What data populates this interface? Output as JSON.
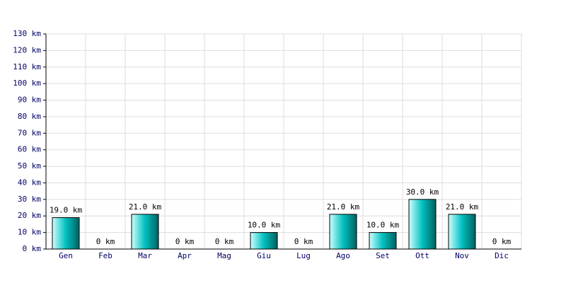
{
  "chart_data": {
    "type": "bar",
    "categories": [
      "Gen",
      "Feb",
      "Mar",
      "Apr",
      "Mag",
      "Giu",
      "Lug",
      "Ago",
      "Set",
      "Ott",
      "Nov",
      "Dic"
    ],
    "values": [
      19,
      0,
      21,
      0,
      0,
      10,
      0,
      21,
      10,
      30,
      21,
      0
    ],
    "value_labels": [
      "19.0 km",
      "0 km",
      "21.0 km",
      "0 km",
      "0 km",
      "10.0 km",
      "0 km",
      "21.0 km",
      "10.0 km",
      "30.0 km",
      "21.0 km",
      "0 km"
    ],
    "color": "#00c0c0",
    "ylim": [
      0,
      130
    ],
    "yticks": [
      {
        "value": 0,
        "label": "0 km"
      },
      {
        "value": 10,
        "label": "10 km"
      },
      {
        "value": 20,
        "label": "20 km"
      },
      {
        "value": 30,
        "label": "30 km"
      },
      {
        "value": 40,
        "label": "40 km"
      },
      {
        "value": 50,
        "label": "50 km"
      },
      {
        "value": 60,
        "label": "60 km"
      },
      {
        "value": 70,
        "label": "70 km"
      },
      {
        "value": 80,
        "label": "80 km"
      },
      {
        "value": 90,
        "label": "90 km"
      },
      {
        "value": 100,
        "label": "100 km"
      },
      {
        "value": 110,
        "label": "110 km"
      },
      {
        "value": 120,
        "label": "120 km"
      },
      {
        "value": 130,
        "label": "130 km"
      }
    ],
    "grid": true
  }
}
